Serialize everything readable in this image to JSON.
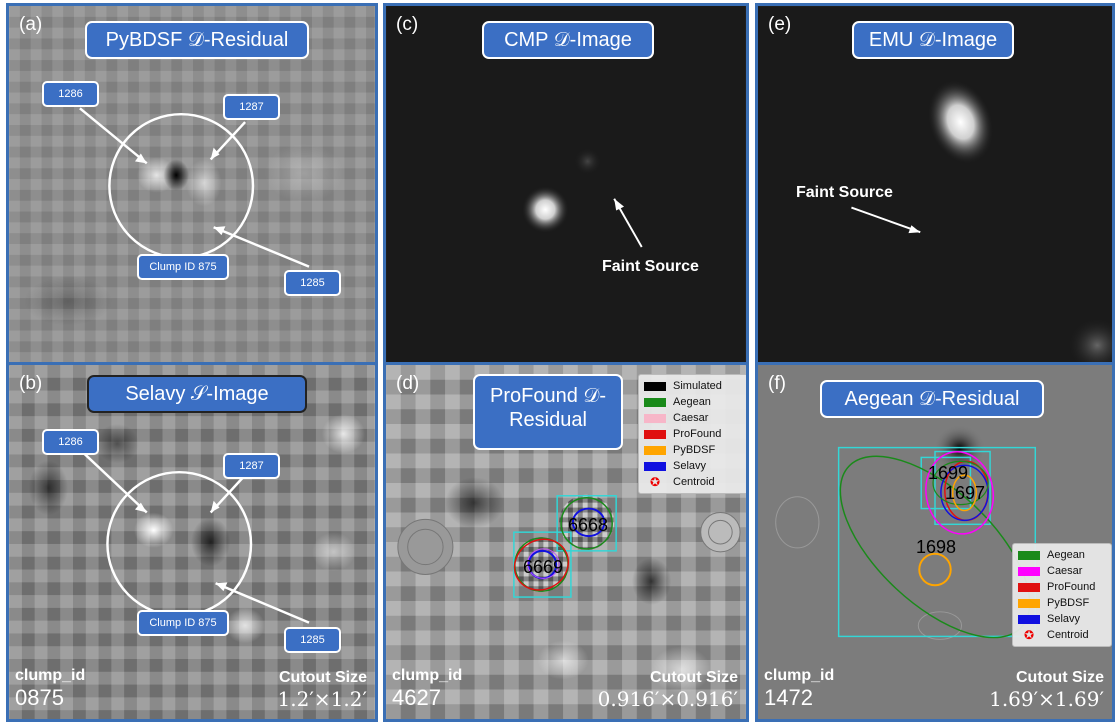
{
  "panels": {
    "a": {
      "label": "(a)",
      "title": "PyBDSF 𝒟-Residual",
      "tags": [
        "1286",
        "1287",
        "Clump ID 875",
        "1285"
      ]
    },
    "b": {
      "label": "(b)",
      "title": "Selavy 𝒮-Image",
      "tags": [
        "1286",
        "1287",
        "Clump ID 875",
        "1285"
      ],
      "clump_key": "clump_id",
      "clump_value": "0875",
      "size_key": "Cutout Size",
      "size_value": "1.2′×1.2′"
    },
    "c": {
      "label": "(c)",
      "title": "CMP 𝒟-Image",
      "note": "Faint Source"
    },
    "d": {
      "label": "(d)",
      "title": "ProFound 𝒟-Residual",
      "ids": [
        "6668",
        "6669"
      ],
      "legend": [
        "Simulated",
        "Aegean",
        "Caesar",
        "ProFound",
        "PyBDSF",
        "Selavy",
        "Centroid"
      ],
      "clump_key": "clump_id",
      "clump_value": "4627",
      "size_key": "Cutout Size",
      "size_value": "0.916′×0.916′"
    },
    "e": {
      "label": "(e)",
      "title": "EMU 𝒟-Image",
      "note": "Faint Source"
    },
    "f": {
      "label": "(f)",
      "title": "Aegean 𝒟-Residual",
      "ids": [
        "1699",
        "1697",
        "1698"
      ],
      "legend": [
        "Aegean",
        "Caesar",
        "ProFound",
        "PyBDSF",
        "Selavy",
        "Centroid"
      ],
      "clump_key": "clump_id",
      "clump_value": "1472",
      "size_key": "Cutout Size",
      "size_value": "1.69′×1.69′"
    }
  },
  "colors": {
    "frame": "#3a6fb5",
    "title_fill": "#3b6fc4",
    "Simulated": "#000000",
    "Aegean": "#1a8a1a",
    "Caesar": "#ff00ff",
    "ProFound": "#e01010",
    "PyBDSF": "#ffa500",
    "Selavy": "#1010e0",
    "Caesar_d": "#f7b6c8",
    "Centroid": "#e00000",
    "box": "#33d6d6"
  }
}
